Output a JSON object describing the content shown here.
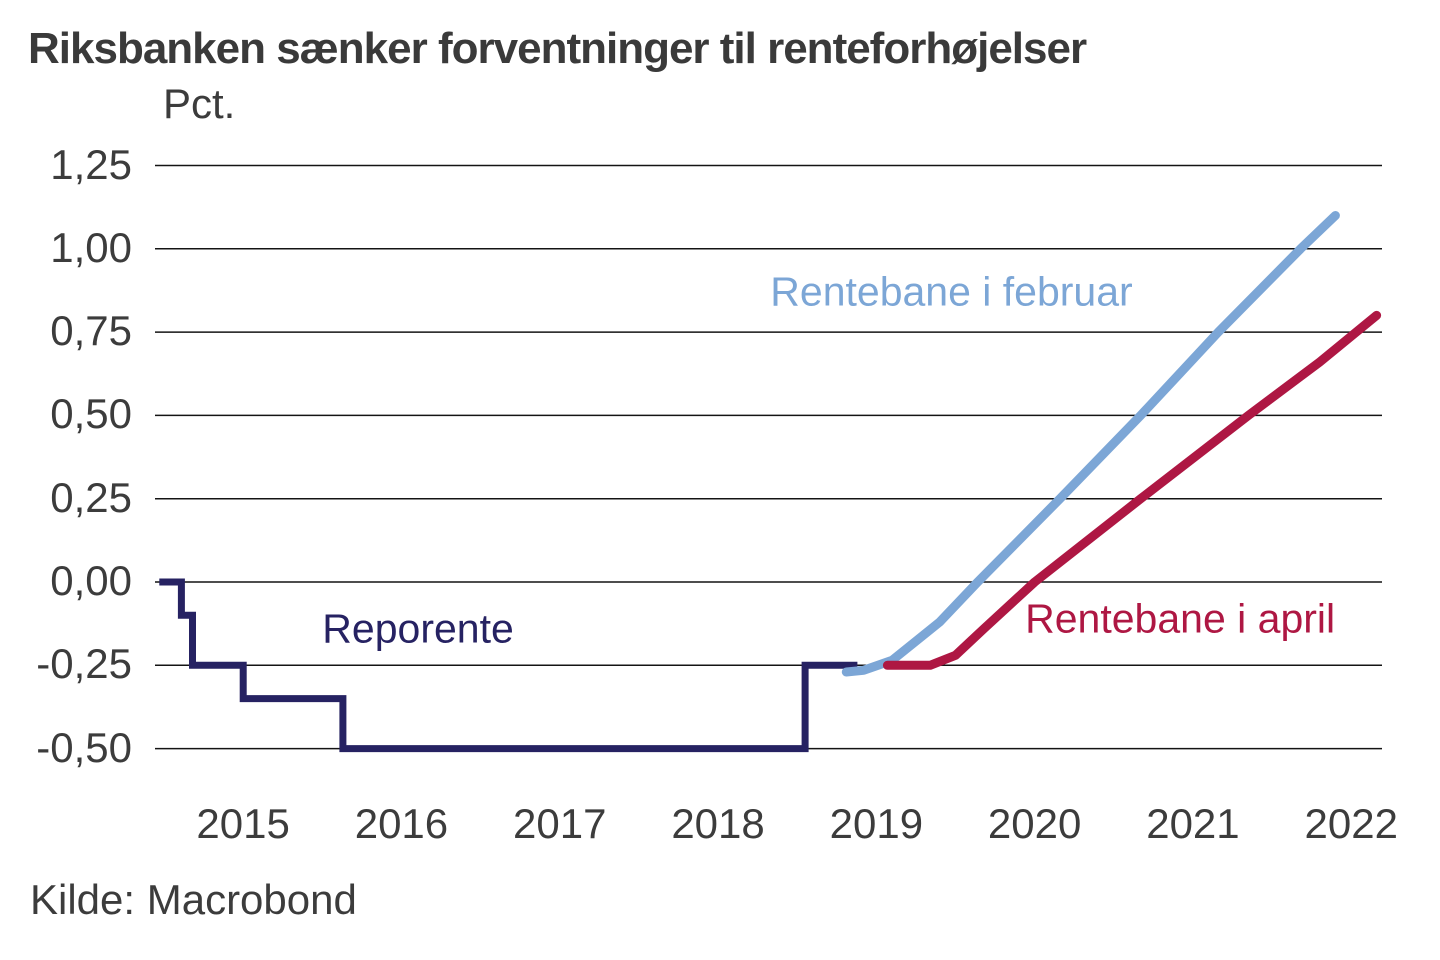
{
  "title": "Riksbanken sænker forventninger til renteforhøjelser",
  "source": "Kilde: Macrobond",
  "colors": {
    "reporente": "#262262",
    "rentebane_februar": "#7CA6D6",
    "rentebane_april": "#AE1743",
    "grid": "#141414",
    "text": "#3c3c3c"
  },
  "chart_data": {
    "type": "line",
    "title": "Riksbanken sænker forventninger til renteforhøjelser",
    "xlabel": "",
    "ylabel": "Pct.",
    "unit_label": "Pct.",
    "source": "Kilde: Macrobond",
    "grid": "horizontal",
    "legend_position": "inline-annotations",
    "xlim": [
      2014.94,
      2022.69
    ],
    "ylim": [
      -0.6,
      1.33
    ],
    "x_ticks": [
      2015,
      2016,
      2017,
      2018,
      2019,
      2020,
      2021,
      2022
    ],
    "y_ticks": [
      1.25,
      1.0,
      0.75,
      0.5,
      0.25,
      0.0,
      -0.25,
      -0.5
    ],
    "y_tick_labels": [
      "1,25",
      "1,00",
      "0,75",
      "0,50",
      "0,25",
      "0,00",
      "-0,25",
      "-0,50"
    ],
    "series": [
      {
        "name": "Reporente",
        "color": "#262262",
        "style": "step",
        "width": 7,
        "points": [
          [
            2014.97,
            0.0
          ],
          [
            2015.11,
            0.0
          ],
          [
            2015.11,
            -0.1
          ],
          [
            2015.18,
            -0.1
          ],
          [
            2015.18,
            -0.25
          ],
          [
            2015.5,
            -0.25
          ],
          [
            2015.5,
            -0.35
          ],
          [
            2016.13,
            -0.35
          ],
          [
            2016.13,
            -0.5
          ],
          [
            2019.05,
            -0.5
          ],
          [
            2019.05,
            -0.25
          ],
          [
            2019.38,
            -0.25
          ]
        ]
      },
      {
        "name": "Rentebane i februar",
        "color": "#7CA6D6",
        "style": "smooth",
        "width": 9,
        "points": [
          [
            2019.31,
            -0.27
          ],
          [
            2019.42,
            -0.265
          ],
          [
            2019.6,
            -0.235
          ],
          [
            2019.9,
            -0.12
          ],
          [
            2020.14,
            0.0
          ],
          [
            2020.66,
            0.25
          ],
          [
            2021.17,
            0.5
          ],
          [
            2021.66,
            0.75
          ],
          [
            2022.18,
            1.0
          ],
          [
            2022.4,
            1.1
          ]
        ]
      },
      {
        "name": "Rentebane i april",
        "color": "#AE1743",
        "style": "smooth",
        "width": 9,
        "points": [
          [
            2019.57,
            -0.25
          ],
          [
            2019.84,
            -0.25
          ],
          [
            2020.0,
            -0.22
          ],
          [
            2020.18,
            -0.14
          ],
          [
            2020.5,
            0.0
          ],
          [
            2021.17,
            0.25
          ],
          [
            2021.85,
            0.5
          ],
          [
            2022.3,
            0.66
          ],
          [
            2022.66,
            0.8
          ]
        ]
      }
    ],
    "annotations": [
      {
        "id": "reporente",
        "text": "Reporente",
        "color": "#262262",
        "x": 2016.0,
        "y": -0.14
      },
      {
        "id": "rentebane-februar",
        "text": "Rentebane i februar",
        "color": "#7CA6D6",
        "x": 2018.83,
        "y": 0.87
      },
      {
        "id": "rentebane-april",
        "text": "Rentebane i april",
        "color": "#AE1743",
        "x": 2020.44,
        "y": -0.11
      }
    ]
  }
}
